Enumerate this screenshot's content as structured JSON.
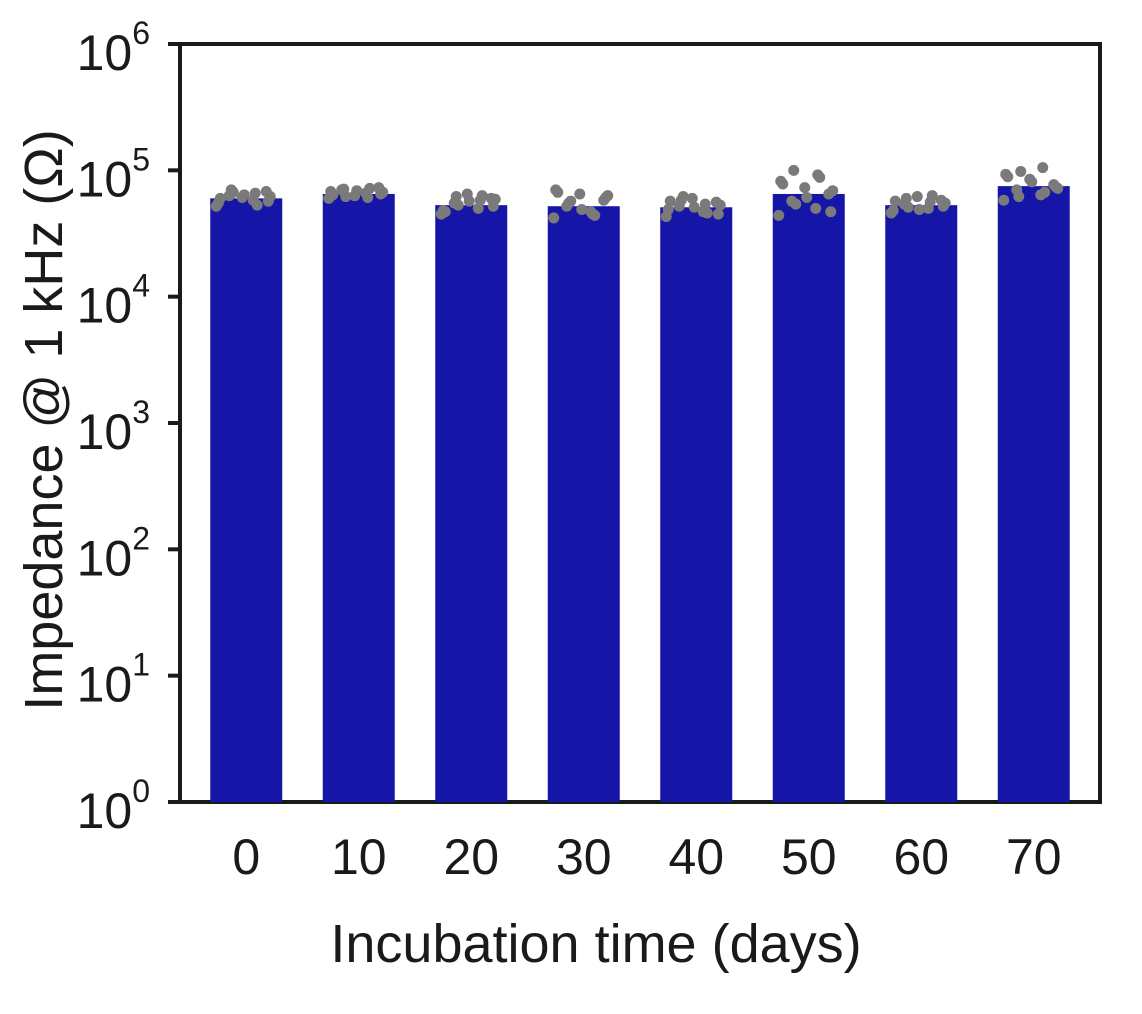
{
  "chart_data": {
    "type": "bar",
    "xlabel": "Incubation time (days)",
    "ylabel": "Impedance @ 1 kHz (Ω)",
    "yscale": "log",
    "ylim": [
      1,
      1000000
    ],
    "grid": false,
    "categories": [
      "0",
      "10",
      "20",
      "30",
      "40",
      "50",
      "60",
      "70"
    ],
    "y_ticks": [
      {
        "base": "10",
        "exp": "0",
        "value": 1
      },
      {
        "base": "10",
        "exp": "1",
        "value": 10
      },
      {
        "base": "10",
        "exp": "2",
        "value": 100
      },
      {
        "base": "10",
        "exp": "3",
        "value": 1000
      },
      {
        "base": "10",
        "exp": "4",
        "value": 10000
      },
      {
        "base": "10",
        "exp": "5",
        "value": 100000
      },
      {
        "base": "10",
        "exp": "6",
        "value": 1000000
      }
    ],
    "series": [
      {
        "values": [
          60000,
          65000,
          53000,
          52000,
          51000,
          65000,
          53000,
          75000
        ],
        "color": "#1515a8",
        "point_color": "#7a7a7a",
        "points": [
          [
            52000,
            58000,
            63000,
            68000,
            61000,
            55000,
            66000,
            70000,
            57000,
            64000,
            60000,
            53000,
            67000,
            62000
          ],
          [
            60000,
            66000,
            70000,
            73000,
            63000,
            68000,
            61000,
            71000,
            65000,
            69000,
            64000,
            72000,
            62000,
            67000
          ],
          [
            45000,
            50000,
            55000,
            60000,
            65000,
            48000,
            58000,
            62000,
            52000,
            57000,
            47000,
            63000,
            53000,
            59000
          ],
          [
            42000,
            47000,
            52000,
            58000,
            65000,
            70000,
            45000,
            55000,
            61000,
            49000,
            67000,
            44000,
            57000,
            63000
          ],
          [
            43000,
            47000,
            52000,
            56000,
            60000,
            49000,
            54000,
            58000,
            45000,
            51000,
            57000,
            46000,
            62000,
            53000
          ],
          [
            44000,
            50000,
            57000,
            65000,
            73000,
            82000,
            92000,
            100000,
            47000,
            61000,
            78000,
            88000,
            54000,
            69000
          ],
          [
            46000,
            50000,
            54000,
            58000,
            62000,
            48000,
            56000,
            60000,
            52000,
            49000,
            57000,
            63000,
            51000,
            55000
          ],
          [
            58000,
            64000,
            70000,
            77000,
            85000,
            93000,
            105000,
            62000,
            74000,
            81000,
            89000,
            67000,
            98000,
            72000
          ]
        ]
      }
    ]
  }
}
